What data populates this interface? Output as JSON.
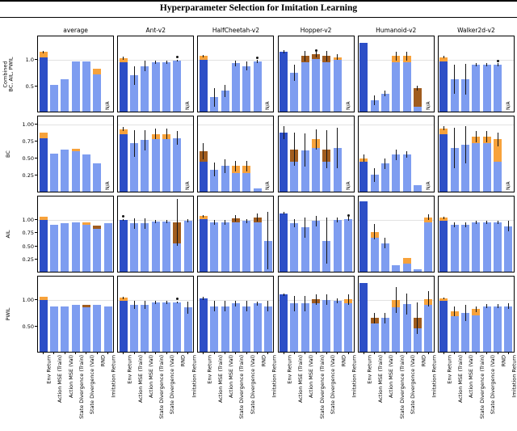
{
  "title": "Hyperparameter Selection for Imitation Learning",
  "na_label": "N/A",
  "colors": {
    "env_bar": "#2d4fc7",
    "metric_bar": "#7e9df0",
    "orange_seg": "#f7a23b",
    "brown_seg": "#a05c1e",
    "error_bar": "#141414",
    "gridline": "#e2e2e2"
  },
  "chart_data": {
    "type": "bar",
    "title": "Hyperparameter Selection for Imitation Learning",
    "grid": "horizontal gridline at y=1.0",
    "legend_position": "none",
    "categories": [
      "Env Return",
      "Action MSE (Train)",
      "Action MSE (Val)",
      "State Divergence (Train)",
      "State Divergence (Val)",
      "RND",
      "Imitation Return"
    ],
    "columns": [
      "average",
      "Ant-v2",
      "HalfCheetah-v2",
      "Hopper-v2",
      "Humanoid-v2",
      "Walker2d-v2"
    ],
    "rows": [
      {
        "label": "Combined\nBC, AIL, PWIL",
        "ymax": 1.45,
        "yticks": [
          {
            "v": 0.5,
            "t": "0.5"
          },
          {
            "v": 1.0,
            "t": "1.0"
          }
        ]
      },
      {
        "label": "BC",
        "ymax": 1.12,
        "yticks": [
          {
            "v": 0.25,
            "t": "0.25"
          },
          {
            "v": 0.5,
            "t": "0.50"
          },
          {
            "v": 0.75,
            "t": "0.75"
          },
          {
            "v": 1.0,
            "t": "1.00"
          }
        ]
      },
      {
        "label": "AIL",
        "ymax": 1.45,
        "yticks": [
          {
            "v": 0.25,
            "t": "0.25"
          },
          {
            "v": 0.5,
            "t": "0.50"
          },
          {
            "v": 0.75,
            "t": "0.75"
          },
          {
            "v": 1.0,
            "t": "1.00"
          }
        ]
      },
      {
        "label": "PWIL",
        "ymax": 1.45,
        "yticks": [
          {
            "v": 0.5,
            "t": "0.50"
          },
          {
            "v": 1.0,
            "t": "1.00"
          }
        ]
      }
    ],
    "cells": [
      {
        "row": 0,
        "col": 0,
        "bars": [
          {
            "b": 1.05,
            "o": 0.1,
            "e": 0.02
          },
          {
            "b": 0.52
          },
          {
            "b": 0.63
          },
          {
            "b": 0.97
          },
          {
            "b": 0.97
          },
          {
            "b": 0.72,
            "o": 0.1
          },
          {
            "na": true
          }
        ]
      },
      {
        "row": 0,
        "col": 1,
        "bars": [
          {
            "b": 0.95,
            "o": 0.08,
            "e": 0.03
          },
          {
            "b": 0.7,
            "e": 0.18
          },
          {
            "b": 0.88,
            "e": 0.1
          },
          {
            "b": 0.95,
            "e": 0.03
          },
          {
            "b": 0.95,
            "e": 0.03
          },
          {
            "b": 0.98,
            "e": 0.02,
            "d": 1
          },
          {
            "na": true
          }
        ]
      },
      {
        "row": 0,
        "col": 2,
        "bars": [
          {
            "b": 1.0,
            "o": 0.07,
            "e": 0.02
          },
          {
            "b": 0.28,
            "e": 0.18
          },
          {
            "b": 0.4,
            "e": 0.12
          },
          {
            "b": 0.93,
            "e": 0.05
          },
          {
            "b": 0.88,
            "e": 0.08
          },
          {
            "b": 0.97,
            "e": 0.03,
            "d": 1
          },
          {
            "na": true
          }
        ]
      },
      {
        "row": 0,
        "col": 3,
        "bars": [
          {
            "b": 1.15,
            "e": 0.03
          },
          {
            "b": 0.75,
            "e": 0.15
          },
          {
            "b": 0.95,
            "br": 0.12,
            "e": 0.1
          },
          {
            "b": 1.02,
            "br": 0.08,
            "e": 0.06,
            "d": 1
          },
          {
            "b": 0.95,
            "br": 0.12,
            "e": 0.1
          },
          {
            "b": 1.0,
            "o": 0.05,
            "e": 0.05
          },
          {
            "na": true
          }
        ]
      },
      {
        "row": 0,
        "col": 4,
        "bars": [
          {
            "b": 1.32
          },
          {
            "b": 0.22,
            "e": 0.1
          },
          {
            "b": 0.35,
            "e": 0.05
          },
          {
            "b": 0.95,
            "o": 0.12,
            "e": 0.08
          },
          {
            "b": 0.95,
            "o": 0.12,
            "e": 0.08
          },
          {
            "b": 0.1,
            "br": 0.35,
            "e": 0.05
          },
          {
            "na": true
          }
        ]
      },
      {
        "row": 0,
        "col": 5,
        "bars": [
          {
            "b": 0.97,
            "o": 0.08,
            "e": 0.02
          },
          {
            "b": 0.62,
            "e": 0.28
          },
          {
            "b": 0.62,
            "e": 0.3
          },
          {
            "b": 0.9,
            "e": 0.03
          },
          {
            "b": 0.9,
            "e": 0.03
          },
          {
            "b": 0.9,
            "e": 0.03,
            "d": 1
          },
          {
            "na": true
          }
        ]
      },
      {
        "row": 1,
        "col": 0,
        "bars": [
          {
            "b": 0.8,
            "o": 0.08
          },
          {
            "b": 0.57
          },
          {
            "b": 0.63
          },
          {
            "b": 0.6,
            "o": 0.04
          },
          {
            "b": 0.55
          },
          {
            "b": 0.42
          },
          {
            "na": true
          }
        ]
      },
      {
        "row": 1,
        "col": 1,
        "bars": [
          {
            "b": 0.85,
            "o": 0.08,
            "e": 0.03
          },
          {
            "b": 0.72,
            "e": 0.2
          },
          {
            "b": 0.77,
            "e": 0.15
          },
          {
            "b": 0.78,
            "o": 0.08,
            "e": 0.08
          },
          {
            "b": 0.78,
            "o": 0.08,
            "e": 0.08
          },
          {
            "b": 0.8,
            "e": 0.1
          },
          {
            "na": true
          }
        ]
      },
      {
        "row": 1,
        "col": 2,
        "bars": [
          {
            "b": 0.45,
            "br": 0.15,
            "e": 0.12
          },
          {
            "b": 0.33,
            "e": 0.1
          },
          {
            "b": 0.38,
            "e": 0.1
          },
          {
            "b": 0.28,
            "o": 0.1,
            "e": 0.08
          },
          {
            "b": 0.28,
            "o": 0.1,
            "e": 0.08
          },
          {
            "b": 0.05
          },
          {
            "na": true
          }
        ]
      },
      {
        "row": 1,
        "col": 3,
        "bars": [
          {
            "b": 0.88,
            "e": 0.1
          },
          {
            "b": 0.45,
            "br": 0.18,
            "e": 0.25
          },
          {
            "b": 0.62,
            "e": 0.25
          },
          {
            "b": 0.65,
            "o": 0.13,
            "e": 0.15
          },
          {
            "b": 0.45,
            "br": 0.18,
            "e": 0.28
          },
          {
            "b": 0.65,
            "e": 0.3
          },
          {
            "na": true
          }
        ]
      },
      {
        "row": 1,
        "col": 4,
        "bars": [
          {
            "b": 0.45,
            "o": 0.05,
            "e": 0.05
          },
          {
            "b": 0.25,
            "e": 0.1
          },
          {
            "b": 0.42,
            "e": 0.08
          },
          {
            "b": 0.55,
            "e": 0.08
          },
          {
            "b": 0.55,
            "e": 0.05
          },
          {
            "b": 0.1
          },
          {
            "na": true
          }
        ]
      },
      {
        "row": 1,
        "col": 5,
        "bars": [
          {
            "b": 0.85,
            "o": 0.09,
            "e": 0.03
          },
          {
            "b": 0.65,
            "e": 0.3
          },
          {
            "b": 0.7,
            "e": 0.28
          },
          {
            "b": 0.72,
            "o": 0.1,
            "e": 0.08
          },
          {
            "b": 0.72,
            "o": 0.1,
            "e": 0.08
          },
          {
            "b": 0.45,
            "o": 0.33,
            "e": 0.1
          },
          {
            "na": true
          }
        ]
      },
      {
        "row": 2,
        "col": 0,
        "bars": [
          {
            "b": 1.0,
            "o": 0.06
          },
          {
            "b": 0.9
          },
          {
            "b": 0.93
          },
          {
            "b": 0.95
          },
          {
            "b": 0.9,
            "o": 0.05
          },
          {
            "b": 0.82,
            "br": 0.07
          },
          {
            "b": 0.93
          }
        ]
      },
      {
        "row": 2,
        "col": 1,
        "bars": [
          {
            "b": 1.0,
            "e": 0.02,
            "d": 1
          },
          {
            "b": 0.93,
            "e": 0.1
          },
          {
            "b": 0.93,
            "e": 0.1
          },
          {
            "b": 0.97,
            "e": 0.03
          },
          {
            "b": 0.97,
            "e": 0.03
          },
          {
            "b": 0.55,
            "br": 0.4,
            "e": 0.45
          },
          {
            "b": 0.98,
            "e": 0.03
          }
        ]
      },
      {
        "row": 2,
        "col": 2,
        "bars": [
          {
            "b": 1.02,
            "o": 0.05,
            "e": 0.02
          },
          {
            "b": 0.95,
            "e": 0.05
          },
          {
            "b": 0.95,
            "e": 0.05
          },
          {
            "b": 0.95,
            "br": 0.08,
            "e": 0.06
          },
          {
            "b": 0.98,
            "e": 0.04
          },
          {
            "b": 0.95,
            "br": 0.1,
            "e": 0.08
          },
          {
            "b": 0.6,
            "e": 0.55
          }
        ]
      },
      {
        "row": 2,
        "col": 3,
        "bars": [
          {
            "b": 1.13,
            "e": 0.02
          },
          {
            "b": 0.93,
            "e": 0.08
          },
          {
            "b": 0.85,
            "e": 0.2
          },
          {
            "b": 0.98,
            "e": 0.1
          },
          {
            "b": 0.6,
            "e": 0.45
          },
          {
            "b": 1.0,
            "e": 0.05
          },
          {
            "b": 1.02,
            "e": 0.04,
            "d": 1
          }
        ]
      },
      {
        "row": 2,
        "col": 4,
        "bars": [
          {
            "b": 1.35
          },
          {
            "b": 0.65,
            "o": 0.12,
            "e": 0.15
          },
          {
            "b": 0.55,
            "e": 0.1
          },
          {
            "b": 0.12
          },
          {
            "b": 0.15,
            "o": 0.12
          },
          {
            "b": 0.05
          },
          {
            "b": 0.95,
            "o": 0.1,
            "e": 0.05
          }
        ]
      },
      {
        "row": 2,
        "col": 5,
        "bars": [
          {
            "b": 0.98,
            "o": 0.06,
            "e": 0.02
          },
          {
            "b": 0.9,
            "e": 0.05
          },
          {
            "b": 0.9,
            "e": 0.05
          },
          {
            "b": 0.95,
            "e": 0.03
          },
          {
            "b": 0.95,
            "e": 0.03
          },
          {
            "b": 0.95,
            "e": 0.03
          },
          {
            "b": 0.88,
            "e": 0.1
          }
        ]
      },
      {
        "row": 3,
        "col": 0,
        "bars": [
          {
            "b": 1.0,
            "o": 0.06
          },
          {
            "b": 0.87
          },
          {
            "b": 0.87
          },
          {
            "b": 0.9
          },
          {
            "b": 0.85,
            "br": 0.06
          },
          {
            "b": 0.9
          },
          {
            "b": 0.87
          }
        ]
      },
      {
        "row": 3,
        "col": 1,
        "bars": [
          {
            "b": 0.98,
            "o": 0.06,
            "e": 0.02
          },
          {
            "b": 0.9,
            "e": 0.08
          },
          {
            "b": 0.9,
            "e": 0.08
          },
          {
            "b": 0.95,
            "e": 0.03
          },
          {
            "b": 0.95,
            "e": 0.03
          },
          {
            "b": 0.95,
            "e": 0.02,
            "d": 1
          },
          {
            "b": 0.85,
            "e": 0.12
          }
        ]
      },
      {
        "row": 3,
        "col": 2,
        "bars": [
          {
            "b": 1.03,
            "e": 0.03
          },
          {
            "b": 0.88,
            "e": 0.1
          },
          {
            "b": 0.88,
            "e": 0.1
          },
          {
            "b": 0.93,
            "e": 0.05
          },
          {
            "b": 0.88,
            "e": 0.1
          },
          {
            "b": 0.93,
            "e": 0.04
          },
          {
            "b": 0.88,
            "e": 0.1
          }
        ]
      },
      {
        "row": 3,
        "col": 3,
        "bars": [
          {
            "b": 1.1,
            "e": 0.02
          },
          {
            "b": 0.93,
            "e": 0.15
          },
          {
            "b": 0.93,
            "e": 0.15
          },
          {
            "b": 0.93,
            "br": 0.08,
            "e": 0.1
          },
          {
            "b": 1.0,
            "e": 0.1
          },
          {
            "b": 0.98,
            "e": 0.05
          },
          {
            "b": 0.93,
            "o": 0.08,
            "e": 0.1
          }
        ]
      },
      {
        "row": 3,
        "col": 4,
        "bars": [
          {
            "b": 1.32
          },
          {
            "b": 0.55,
            "br": 0.1,
            "e": 0.1
          },
          {
            "b": 0.65,
            "e": 0.1
          },
          {
            "b": 0.85,
            "o": 0.15,
            "e": 0.25
          },
          {
            "b": 0.92,
            "e": 0.2
          },
          {
            "b": 0.45,
            "br": 0.2,
            "e": 0.3
          },
          {
            "b": 0.9,
            "o": 0.12,
            "e": 0.15
          }
        ]
      },
      {
        "row": 3,
        "col": 5,
        "bars": [
          {
            "b": 0.98,
            "o": 0.05,
            "e": 0.02
          },
          {
            "b": 0.68,
            "o": 0.1,
            "e": 0.1
          },
          {
            "b": 0.75,
            "e": 0.15
          },
          {
            "b": 0.7,
            "o": 0.12,
            "e": 0.05
          },
          {
            "b": 0.88,
            "e": 0.04
          },
          {
            "b": 0.88,
            "e": 0.04
          },
          {
            "b": 0.88,
            "e": 0.05
          }
        ]
      }
    ]
  }
}
